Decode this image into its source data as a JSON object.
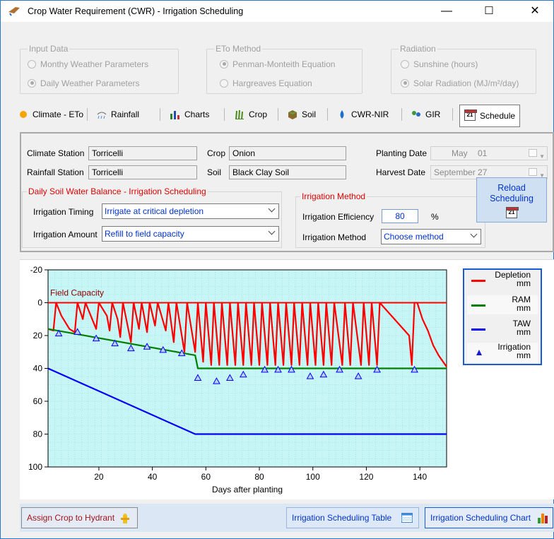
{
  "window": {
    "title": "Crop Water Requirement (CWR) - Irrigation Scheduling",
    "minimize": "—",
    "maximize": "☐",
    "close": "✕"
  },
  "input_data": {
    "legend": "Input Data",
    "opt1": "Monthy Weather Parameters",
    "opt2": "Daily Weather Parameters"
  },
  "eto_method": {
    "legend": "ETo Method",
    "opt1": "Penman-Monteith Equation",
    "opt2": "Hargreaves Equation"
  },
  "radiation": {
    "legend": "Radiation",
    "opt1": "Sunshine (hours)",
    "opt2": "Solar Radiation (MJ/m²/day)"
  },
  "tabs": [
    {
      "label": "Climate - ETo",
      "icon": "sun-icon"
    },
    {
      "label": "Rainfall",
      "icon": "rain-icon"
    },
    {
      "label": "Charts",
      "icon": "bar-chart-icon"
    },
    {
      "label": "Crop",
      "icon": "crop-icon"
    },
    {
      "label": "Soil",
      "icon": "soil-icon"
    },
    {
      "label": "CWR-NIR",
      "icon": "water-drop-icon"
    },
    {
      "label": "GIR",
      "icon": "people-icon"
    },
    {
      "label": "Schedule",
      "icon": "calendar-icon"
    }
  ],
  "info": {
    "climate_station_label": "Climate Station",
    "climate_station": "Torricelli",
    "rainfall_station_label": "Rainfall Station",
    "rainfall_station": "Torricelli",
    "crop_label": "Crop",
    "crop": "Onion",
    "soil_label": "Soil",
    "soil": "Black Clay Soil",
    "planting_label": "Planting Date",
    "planting_month": "May",
    "planting_day": "01",
    "harvest_label": "Harvest Date",
    "harvest_date": "September 27"
  },
  "balance": {
    "legend": "Daily Soil Water Balance - Irrigation Scheduling",
    "timing_label": "Irrigation Timing",
    "timing_value": "Irrigate at critical depletion",
    "amount_label": "Irrigation Amount",
    "amount_value": "Refill to field capacity"
  },
  "method": {
    "legend": "Irrigation Method",
    "efficiency_label": "Irrigation Efficiency",
    "efficiency_value": "80",
    "efficiency_unit": "%",
    "method_label": "Irrigation Method",
    "method_value": "Choose method"
  },
  "reload": {
    "line1": "Reload",
    "line2": "Scheduling",
    "icon_text": "21"
  },
  "buttons": {
    "assign": "Assign Crop to Hydrant",
    "table": "Irrigation Scheduling Table",
    "chart": "Irrigation Scheduling Chart"
  },
  "colors": {
    "depletion": "#ff0000",
    "ram": "#008000",
    "taw": "#0000ff",
    "irrigation": "#0000ff",
    "plot_bg": "#c8f5f5"
  },
  "chart_data": {
    "type": "line",
    "xlabel": "Days after planting",
    "ylabel": "",
    "annotation": "Field Capacity",
    "xlim": [
      1,
      150
    ],
    "ylim": [
      -20,
      100
    ],
    "y_inverted": true,
    "xticks": [
      20,
      40,
      60,
      80,
      100,
      120,
      140
    ],
    "yticks": [
      -20,
      0,
      20,
      40,
      60,
      80,
      100
    ],
    "legend_position": "right",
    "series": [
      {
        "name": "Depletion\nmm",
        "kind": "line",
        "x": [
          1,
          3,
          4,
          6,
          9,
          11,
          12,
          14,
          15,
          19,
          20,
          23,
          24,
          25,
          27,
          28,
          29,
          32,
          33,
          35,
          36,
          38,
          39,
          41,
          42,
          45,
          46,
          48,
          49,
          52,
          53,
          56,
          57,
          59,
          60,
          62,
          63,
          65,
          66,
          68,
          69,
          71,
          72,
          74,
          75,
          77,
          78,
          80,
          81,
          83,
          84,
          86,
          87,
          89,
          90,
          92,
          93,
          95,
          96,
          98,
          99,
          101,
          102,
          104,
          105,
          107,
          108,
          111,
          112,
          114,
          115,
          118,
          119,
          121,
          122,
          124,
          125,
          136,
          137,
          138,
          139,
          141,
          143,
          145,
          147,
          150
        ],
        "y": [
          16,
          17,
          0,
          8,
          16,
          18,
          0,
          10,
          0,
          16,
          0,
          8,
          17,
          0,
          10,
          21,
          0,
          24,
          0,
          16,
          0,
          18,
          0,
          14,
          0,
          17,
          0,
          24,
          0,
          30,
          0,
          30,
          0,
          36,
          0,
          38,
          0,
          38,
          0,
          38,
          0,
          38,
          0,
          38,
          0,
          38,
          0,
          38,
          0,
          38,
          0,
          38,
          0,
          38,
          0,
          38,
          0,
          38,
          0,
          38,
          0,
          38,
          0,
          38,
          0,
          38,
          0,
          38,
          0,
          38,
          0,
          38,
          0,
          38,
          0,
          38,
          0,
          20,
          38,
          0,
          0,
          10,
          17,
          26,
          32,
          39
        ]
      },
      {
        "name": "RAM\nmm",
        "kind": "line",
        "x": [
          1,
          56,
          57,
          150
        ],
        "y": [
          16,
          32,
          40,
          40
        ]
      },
      {
        "name": "TAW\nmm",
        "kind": "line",
        "x": [
          1,
          56,
          150
        ],
        "y": [
          40,
          80,
          80
        ]
      },
      {
        "name": "Irrigation\nmm",
        "kind": "marker",
        "x": [
          5,
          12,
          19,
          26,
          32,
          38,
          44,
          51,
          57,
          64,
          69,
          74,
          82,
          87,
          92,
          99,
          104,
          110,
          117,
          124,
          138
        ],
        "y": [
          19,
          18,
          22,
          25,
          28,
          27,
          29,
          31,
          46,
          48,
          46,
          44,
          41,
          41,
          41,
          45,
          44,
          41,
          45,
          41,
          41
        ]
      }
    ]
  }
}
